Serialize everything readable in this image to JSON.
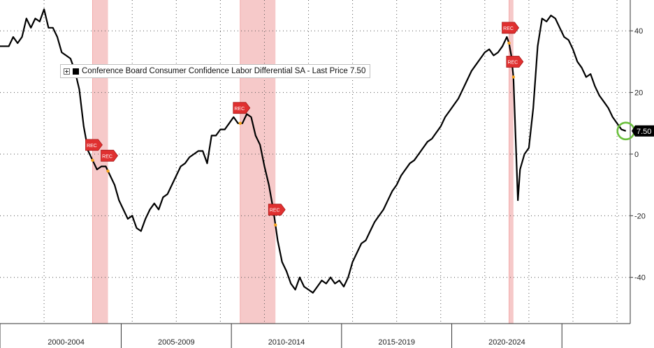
{
  "legend": {
    "series_label": "Conference Board Consumer Confidence Labor Differential SA - Last Price 7.50"
  },
  "last_price_badge": "7.50",
  "recession_marker": "REC",
  "colors": {
    "line": "#000000",
    "recession_band": "#f6c9c9",
    "recession_band_edge": "#f2a9a9",
    "rec_marker": "#e03030",
    "highlight_circle": "#6abf3c",
    "badge_bg": "#000000",
    "badge_text": "#ffffff",
    "grid": "#555555",
    "recession_dot": "#f4a21c"
  },
  "chart_data": {
    "type": "line",
    "title": "",
    "xlabel": "",
    "ylabel": "",
    "ylim": [
      -55,
      50
    ],
    "xlim": [
      1997.0,
      2025.6
    ],
    "y_ticks": [
      40,
      20,
      0,
      -20,
      -40
    ],
    "y_tick_labels": [
      "40",
      "20",
      "0",
      "-20",
      "-40"
    ],
    "x_ticks": [
      2000.0,
      2005.0,
      2010.0,
      2015.0,
      2020.0
    ],
    "x_tick_labels": [
      "2000-2004",
      "2005-2009",
      "2010-2014",
      "2015-2019",
      "2020-2024"
    ],
    "grid": true,
    "legend_position": "top-left",
    "recessions": [
      {
        "start": 2001.2,
        "end": 2001.9
      },
      {
        "start": 2007.9,
        "end": 2009.5
      },
      {
        "start": 2020.1,
        "end": 2020.3
      }
    ],
    "series": [
      {
        "name": "Conference Board Consumer Confidence Labor Differential SA",
        "last_price": 7.5,
        "x": [
          1997.0,
          1997.2,
          1997.4,
          1997.6,
          1997.8,
          1998.0,
          1998.2,
          1998.4,
          1998.6,
          1998.8,
          1999.0,
          1999.2,
          1999.4,
          1999.6,
          1999.8,
          2000.0,
          2000.2,
          2000.4,
          2000.6,
          2000.8,
          2001.0,
          2001.2,
          2001.4,
          2001.6,
          2001.8,
          2002.0,
          2002.2,
          2002.4,
          2002.6,
          2002.8,
          2003.0,
          2003.2,
          2003.4,
          2003.6,
          2003.8,
          2004.0,
          2004.2,
          2004.4,
          2004.6,
          2004.8,
          2005.0,
          2005.2,
          2005.4,
          2005.6,
          2005.8,
          2006.0,
          2006.2,
          2006.4,
          2006.6,
          2006.8,
          2007.0,
          2007.2,
          2007.4,
          2007.6,
          2007.8,
          2008.0,
          2008.2,
          2008.4,
          2008.6,
          2008.8,
          2009.0,
          2009.2,
          2009.4,
          2009.6,
          2009.8,
          2010.0,
          2010.2,
          2010.4,
          2010.6,
          2010.8,
          2011.0,
          2011.2,
          2011.4,
          2011.6,
          2011.8,
          2012.0,
          2012.2,
          2012.4,
          2012.6,
          2012.8,
          2013.0,
          2013.2,
          2013.4,
          2013.6,
          2013.8,
          2014.0,
          2014.2,
          2014.4,
          2014.6,
          2014.8,
          2015.0,
          2015.2,
          2015.4,
          2015.6,
          2015.8,
          2016.0,
          2016.2,
          2016.4,
          2016.6,
          2016.8,
          2017.0,
          2017.2,
          2017.4,
          2017.6,
          2017.8,
          2018.0,
          2018.2,
          2018.4,
          2018.6,
          2018.8,
          2019.0,
          2019.2,
          2019.4,
          2019.6,
          2019.8,
          2020.0,
          2020.1,
          2020.2,
          2020.3,
          2020.4,
          2020.5,
          2020.6,
          2020.8,
          2021.0,
          2021.2,
          2021.4,
          2021.6,
          2021.8,
          2022.0,
          2022.2,
          2022.4,
          2022.6,
          2022.8,
          2023.0,
          2023.2,
          2023.4,
          2023.6,
          2023.8,
          2024.0,
          2024.2,
          2024.4,
          2024.6,
          2024.8,
          2025.0,
          2025.2,
          2025.4
        ],
        "values": [
          35,
          35,
          35,
          38,
          36,
          38,
          44,
          41,
          44,
          43,
          47,
          41,
          41,
          38,
          33,
          32,
          31,
          27,
          21,
          9,
          1,
          -2,
          -5,
          -4,
          -4,
          -7,
          -10,
          -15,
          -18,
          -21,
          -20,
          -24,
          -25,
          -21,
          -18,
          -16,
          -18,
          -14,
          -13,
          -10,
          -7,
          -4,
          -3,
          -1,
          0,
          1,
          1,
          -3,
          6,
          6,
          8,
          8,
          10,
          12,
          10,
          10,
          13,
          12,
          6,
          3,
          -4,
          -10,
          -18,
          -28,
          -35,
          -38,
          -42,
          -44,
          -40,
          -43,
          -44,
          -45,
          -43,
          -41,
          -42,
          -40,
          -42,
          -41,
          -43,
          -40,
          -35,
          -32,
          -29,
          -28,
          -25,
          -22,
          -20,
          -18,
          -15,
          -12,
          -10,
          -7,
          -5,
          -3,
          -2,
          0,
          2,
          4,
          5,
          7,
          9,
          12,
          14,
          16,
          18,
          21,
          24,
          27,
          29,
          31,
          33,
          34,
          32,
          33,
          35,
          38,
          36,
          32,
          25,
          5,
          -15,
          -5,
          0,
          2,
          15,
          35,
          44,
          43,
          45,
          44,
          41,
          38,
          37,
          34,
          30,
          28,
          25,
          26,
          22,
          19,
          17,
          15,
          12,
          10,
          8,
          7.5
        ]
      }
    ]
  }
}
